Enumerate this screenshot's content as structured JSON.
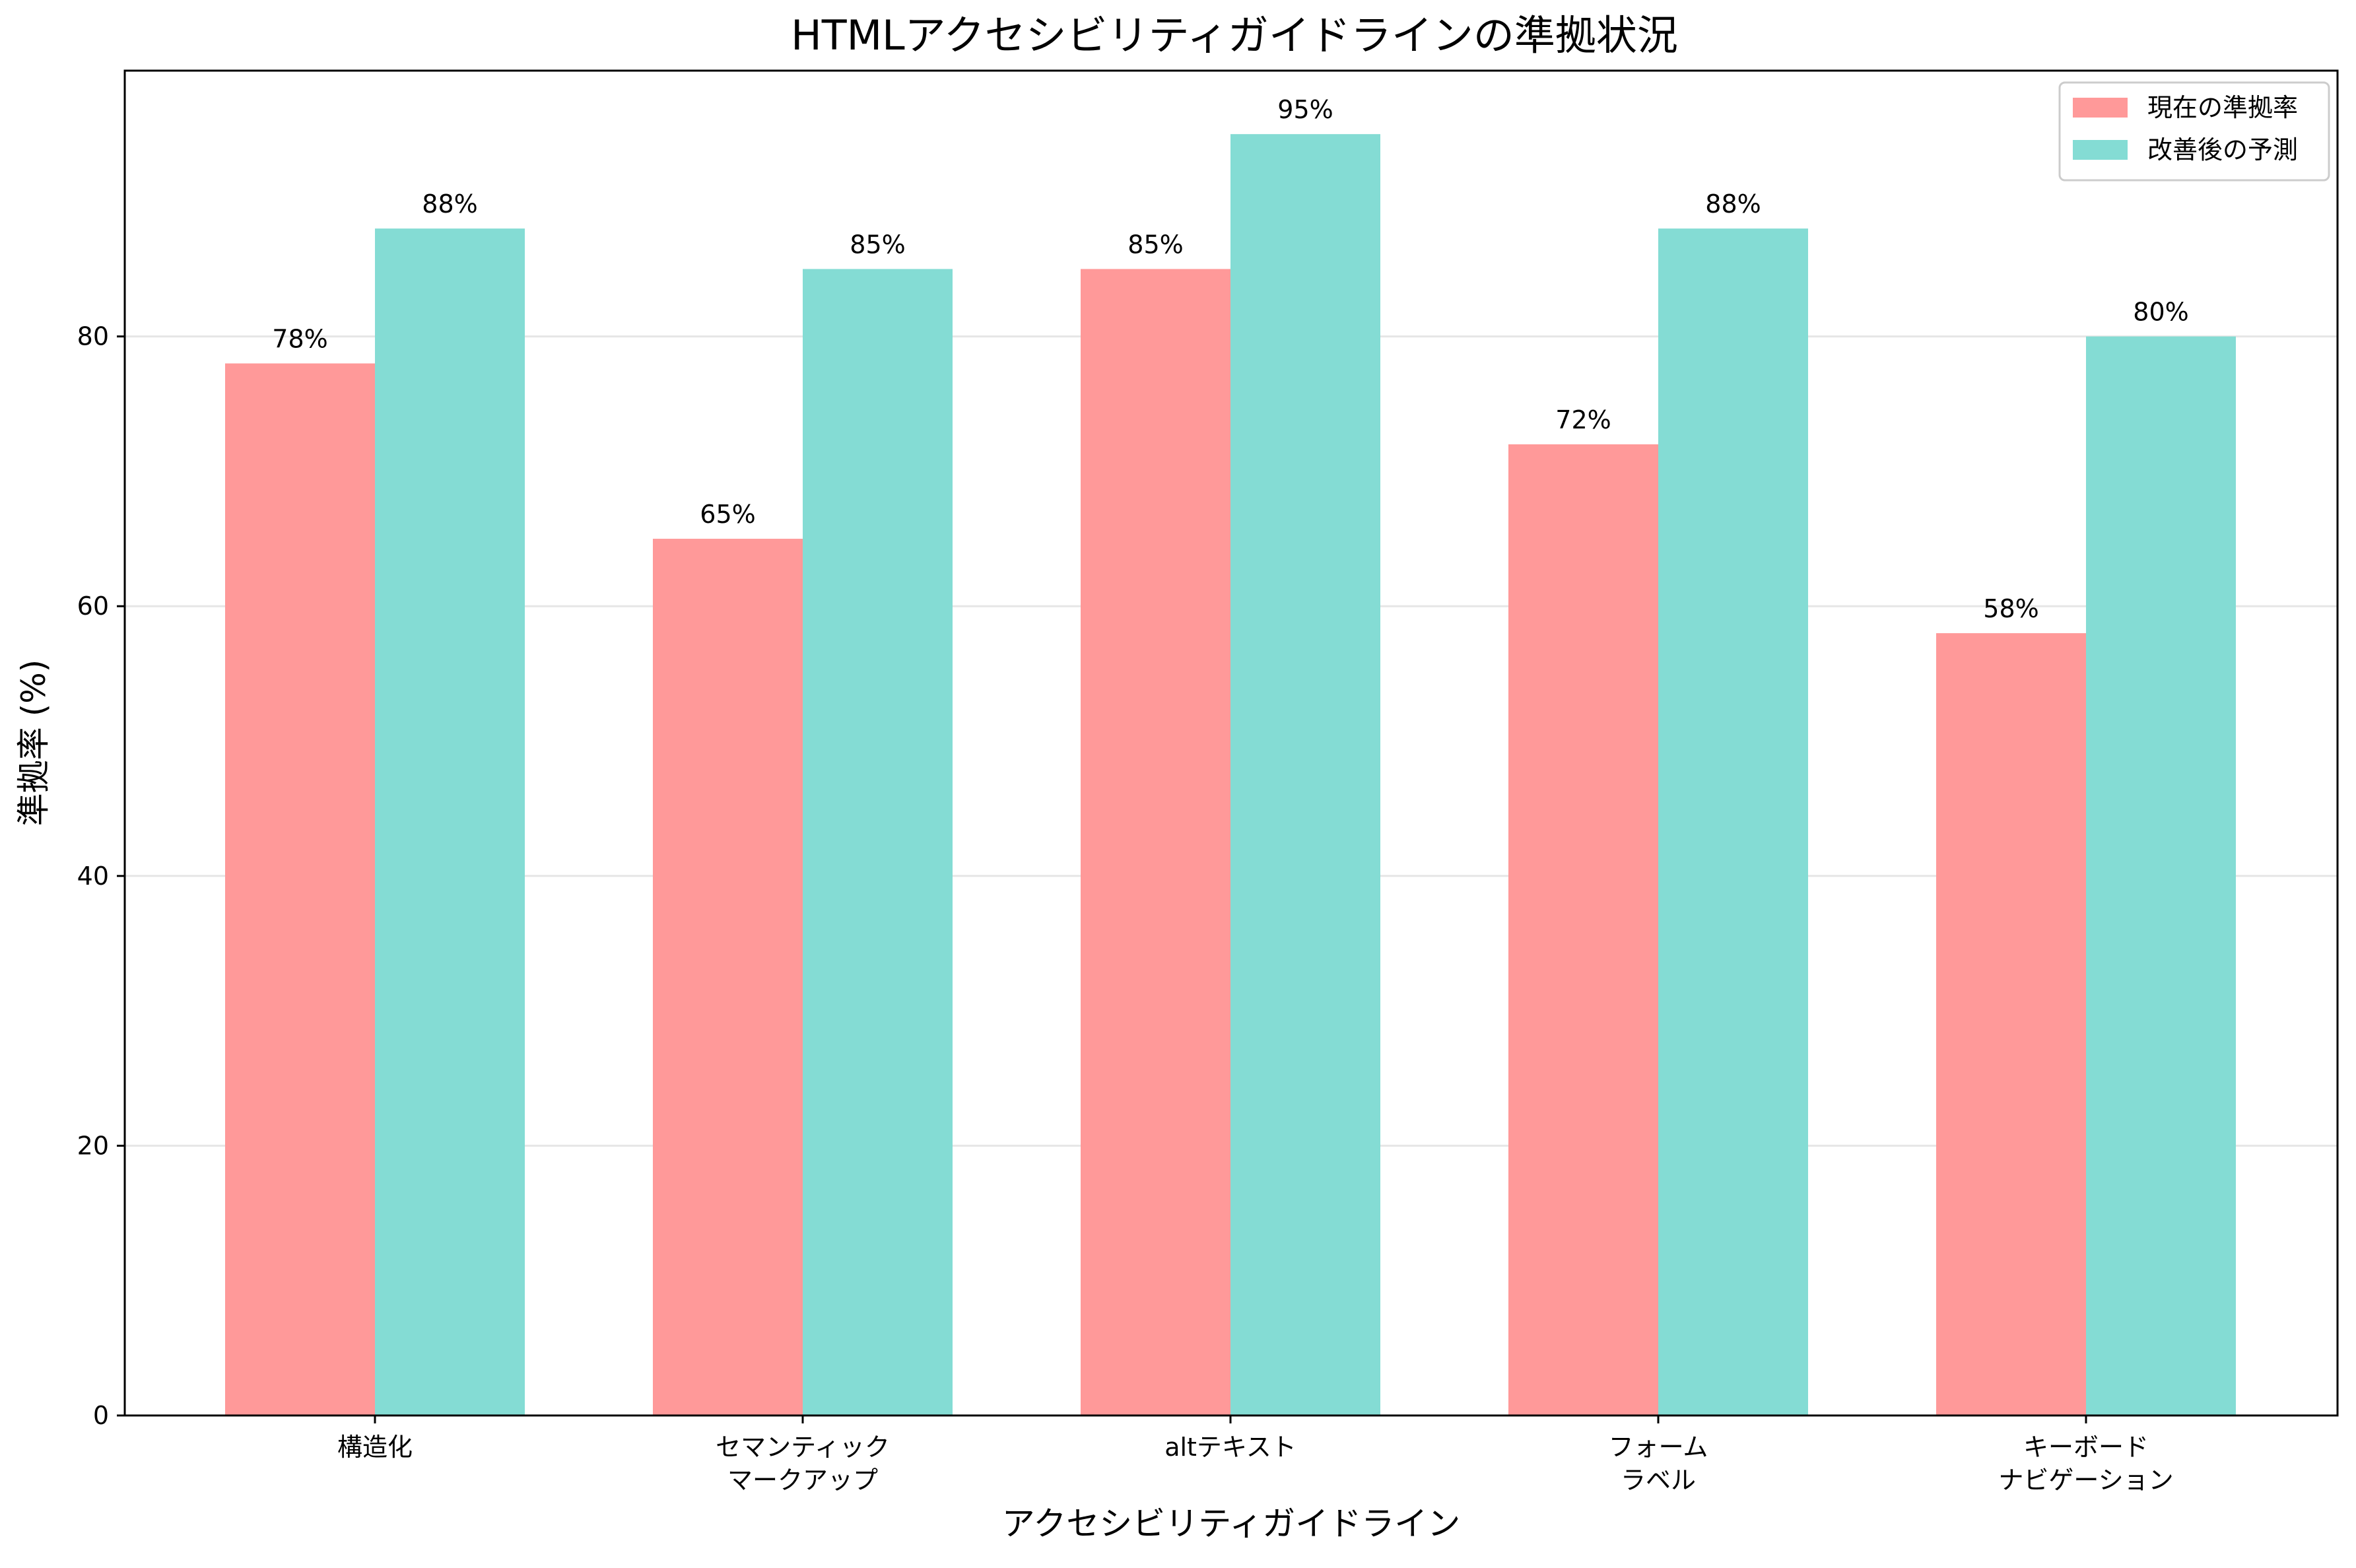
{
  "chart_data": {
    "type": "bar",
    "title": "HTMLアクセシビリティガイドラインの準拠状況",
    "xlabel": "アクセシビリティガイドライン",
    "ylabel": "準拠率 (%)",
    "ylim": [
      0,
      100
    ],
    "yticks": [
      0,
      20,
      40,
      60,
      80
    ],
    "grid": "y",
    "legend_position": "top-right",
    "categories": [
      [
        "構造化"
      ],
      [
        "セマンティック",
        "マークアップ"
      ],
      [
        "altテキスト"
      ],
      [
        "フォーム",
        "ラベル"
      ],
      [
        "キーボード",
        "ナビゲーション"
      ]
    ],
    "series": [
      {
        "name": "現在の準拠率",
        "color": "#ff9999",
        "values": [
          78,
          65,
          85,
          72,
          58
        ],
        "labels": [
          "78%",
          "65%",
          "85%",
          "72%",
          "58%"
        ]
      },
      {
        "name": "改善後の予測",
        "color": "#84dcd4",
        "values": [
          88,
          85,
          95,
          88,
          80
        ],
        "labels": [
          "88%",
          "85%",
          "95%",
          "88%",
          "80%"
        ]
      }
    ]
  }
}
